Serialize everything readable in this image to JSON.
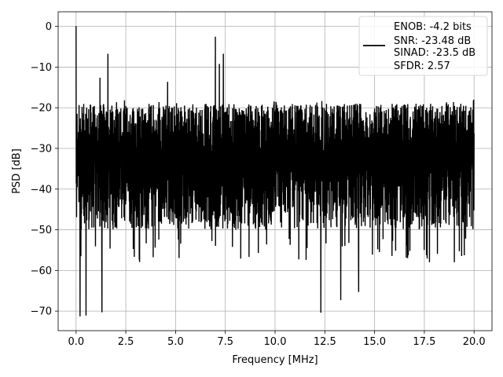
{
  "chart_data": {
    "type": "line",
    "xlabel": "Frequency [MHz]",
    "ylabel": "PSD [dB]",
    "xlim": [
      -0.9,
      20.9
    ],
    "ylim": [
      -74.8,
      3.6
    ],
    "xticks": [
      0.0,
      2.5,
      5.0,
      7.5,
      10.0,
      12.5,
      15.0,
      17.5,
      20.0
    ],
    "xtick_labels": [
      "0.0",
      "2.5",
      "5.0",
      "7.5",
      "10.0",
      "12.5",
      "15.0",
      "17.5",
      "20.0"
    ],
    "yticks": [
      0,
      -10,
      -20,
      -30,
      -40,
      -50,
      -60,
      -70
    ],
    "ytick_labels": [
      "0",
      "−10",
      "−20",
      "−30",
      "−40",
      "−50",
      "−60",
      "−70"
    ],
    "grid": true,
    "legend_position": "top-right",
    "series": [
      {
        "name": "ENOB: -4.2 bits\nSNR: -23.48 dB\nSINAD: -23.5 dB\nSFDR: 2.57",
        "legend_lines": [
          "ENOB: -4.2 bits",
          "SNR: -23.48 dB",
          "SINAD: -23.5 dB",
          "SFDR: 2.57"
        ],
        "color": "#000000",
        "description": "dense noise floor between about -55 dB and -20 dB from 0 to 20 MHz",
        "peaks": [
          {
            "x": 0.0,
            "y": 0.0
          },
          {
            "x": 0.2,
            "y": -71.2
          },
          {
            "x": 0.5,
            "y": -71.0
          },
          {
            "x": 1.2,
            "y": -12.7
          },
          {
            "x": 1.3,
            "y": -70.2
          },
          {
            "x": 1.6,
            "y": -6.8
          },
          {
            "x": 4.6,
            "y": -13.7
          },
          {
            "x": 7.0,
            "y": -2.6
          },
          {
            "x": 7.2,
            "y": -9.3
          },
          {
            "x": 7.4,
            "y": -6.8
          },
          {
            "x": 12.3,
            "y": -70.3
          },
          {
            "x": 13.3,
            "y": -67.2
          },
          {
            "x": 14.2,
            "y": -65.2
          }
        ]
      }
    ]
  }
}
